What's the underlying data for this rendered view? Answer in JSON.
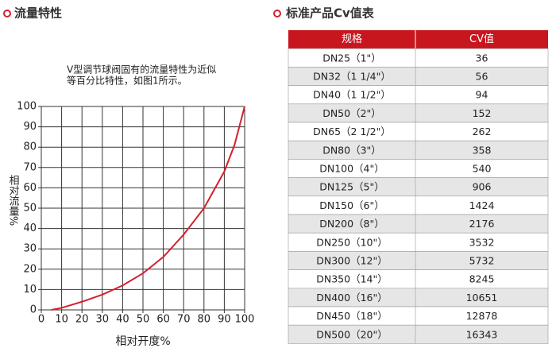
{
  "left_heading": "流量特性",
  "right_heading": "标准产品Cv值表",
  "chart_data": {
    "type": "line",
    "annotation": [
      "V型调节球阀固有的流量特性为近似",
      "等百分比特性，如图1所示。"
    ],
    "x_label": "相对开度%",
    "y_label": "相对流量%",
    "x": [
      5,
      10,
      20,
      30,
      40,
      50,
      60,
      70,
      80,
      90,
      95,
      100
    ],
    "series": [
      {
        "color": "#d4202c",
        "values": [
          0,
          1,
          4,
          7.5,
          12,
          18,
          26,
          37,
          50,
          68,
          81,
          100
        ]
      }
    ],
    "xlim": [
      0,
      100
    ],
    "ylim": [
      0,
      100
    ],
    "xticks": [
      0,
      10,
      20,
      30,
      40,
      50,
      60,
      70,
      80,
      90,
      100
    ],
    "yticks": [
      0,
      10,
      20,
      30,
      40,
      50,
      60,
      70,
      80,
      90,
      100
    ],
    "grid": true
  },
  "table": {
    "header": [
      "规格",
      "CV值"
    ],
    "rows": [
      [
        "DN25（1\"）",
        36
      ],
      [
        "DN32（1 1/4\"）",
        56
      ],
      [
        "DN40（1 1/2\"）",
        94
      ],
      [
        "DN50（2\"）",
        152
      ],
      [
        "DN65（2 1/2\"）",
        262
      ],
      [
        "DN80（3\"）",
        358
      ],
      [
        "DN100（4\"）",
        540
      ],
      [
        "DN125（5\"）",
        906
      ],
      [
        "DN150（6\"）",
        1424
      ],
      [
        "DN200（8\"）",
        2176
      ],
      [
        "DN250（10\"）",
        3532
      ],
      [
        "DN300（12\"）",
        5732
      ],
      [
        "DN350（14\"）",
        8245
      ],
      [
        "DN400（16\"）",
        10651
      ],
      [
        "DN450（18\"）",
        12878
      ],
      [
        "DN500（20\"）",
        16343
      ]
    ]
  }
}
